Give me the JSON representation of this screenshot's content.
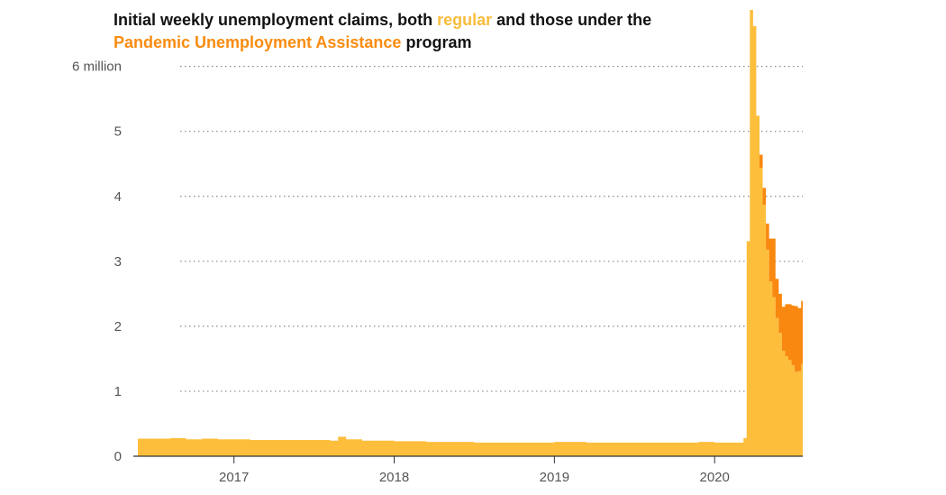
{
  "title": {
    "part1": "Initial weekly unemployment claims, both ",
    "regular_word": "regular",
    "part2": " and those under the",
    "pua_word": "Pandemic Unemployment Assistance",
    "part3": " program"
  },
  "colors": {
    "regular": "#fdbe3c",
    "pua": "#f98810",
    "grid": "#888888",
    "axis": "#333333"
  },
  "chart_data": {
    "type": "area",
    "title": "Initial weekly unemployment claims, both regular and those under the Pandemic Unemployment Assistance program",
    "xlabel": "",
    "ylabel": "",
    "x_unit": "year",
    "xlim": [
      2016.4,
      2020.55
    ],
    "ylim": [
      0,
      6.8
    ],
    "y_ticks": [
      {
        "value": 0,
        "label": "0"
      },
      {
        "value": 1,
        "label": "1"
      },
      {
        "value": 2,
        "label": "2"
      },
      {
        "value": 3,
        "label": "3"
      },
      {
        "value": 4,
        "label": "4"
      },
      {
        "value": 5,
        "label": "5"
      },
      {
        "value": 6,
        "label": "6 million"
      }
    ],
    "x_ticks": [
      {
        "value": 2017,
        "label": "2017"
      },
      {
        "value": 2018,
        "label": "2018"
      },
      {
        "value": 2019,
        "label": "2019"
      },
      {
        "value": 2020,
        "label": "2020"
      }
    ],
    "grid": "horizontal dotted",
    "series": [
      {
        "name": "regular",
        "stack": "bottom",
        "points": [
          [
            2016.4,
            0.27
          ],
          [
            2016.5,
            0.27
          ],
          [
            2016.6,
            0.28
          ],
          [
            2016.7,
            0.26
          ],
          [
            2016.8,
            0.27
          ],
          [
            2016.9,
            0.26
          ],
          [
            2017.0,
            0.26
          ],
          [
            2017.1,
            0.25
          ],
          [
            2017.2,
            0.25
          ],
          [
            2017.3,
            0.25
          ],
          [
            2017.4,
            0.25
          ],
          [
            2017.5,
            0.25
          ],
          [
            2017.6,
            0.24
          ],
          [
            2017.65,
            0.3
          ],
          [
            2017.7,
            0.26
          ],
          [
            2017.8,
            0.24
          ],
          [
            2017.9,
            0.24
          ],
          [
            2018.0,
            0.23
          ],
          [
            2018.1,
            0.23
          ],
          [
            2018.2,
            0.22
          ],
          [
            2018.3,
            0.22
          ],
          [
            2018.4,
            0.22
          ],
          [
            2018.5,
            0.21
          ],
          [
            2018.6,
            0.21
          ],
          [
            2018.7,
            0.21
          ],
          [
            2018.8,
            0.21
          ],
          [
            2018.9,
            0.21
          ],
          [
            2019.0,
            0.22
          ],
          [
            2019.1,
            0.22
          ],
          [
            2019.2,
            0.21
          ],
          [
            2019.3,
            0.21
          ],
          [
            2019.4,
            0.21
          ],
          [
            2019.5,
            0.21
          ],
          [
            2019.6,
            0.21
          ],
          [
            2019.7,
            0.21
          ],
          [
            2019.8,
            0.21
          ],
          [
            2019.9,
            0.22
          ],
          [
            2020.0,
            0.21
          ],
          [
            2020.1,
            0.21
          ],
          [
            2020.18,
            0.28
          ],
          [
            2020.2,
            3.31
          ],
          [
            2020.22,
            6.87
          ],
          [
            2020.24,
            6.62
          ],
          [
            2020.26,
            5.24
          ],
          [
            2020.28,
            4.44
          ],
          [
            2020.3,
            3.87
          ],
          [
            2020.32,
            3.18
          ],
          [
            2020.34,
            2.69
          ],
          [
            2020.36,
            2.45
          ],
          [
            2020.38,
            2.13
          ],
          [
            2020.4,
            1.9
          ],
          [
            2020.42,
            1.62
          ],
          [
            2020.44,
            1.54
          ],
          [
            2020.46,
            1.48
          ],
          [
            2020.48,
            1.4
          ],
          [
            2020.5,
            1.3
          ],
          [
            2020.52,
            1.31
          ],
          [
            2020.54,
            1.42
          ]
        ]
      },
      {
        "name": "Pandemic Unemployment Assistance",
        "stack": "top",
        "points": [
          [
            2020.28,
            0.2
          ],
          [
            2020.3,
            0.26
          ],
          [
            2020.32,
            0.4
          ],
          [
            2020.34,
            0.66
          ],
          [
            2020.36,
            0.9
          ],
          [
            2020.38,
            0.6
          ],
          [
            2020.4,
            0.6
          ],
          [
            2020.42,
            0.68
          ],
          [
            2020.44,
            0.8
          ],
          [
            2020.46,
            0.86
          ],
          [
            2020.48,
            0.92
          ],
          [
            2020.5,
            1.01
          ],
          [
            2020.52,
            0.97
          ],
          [
            2020.54,
            0.97
          ]
        ]
      }
    ]
  }
}
